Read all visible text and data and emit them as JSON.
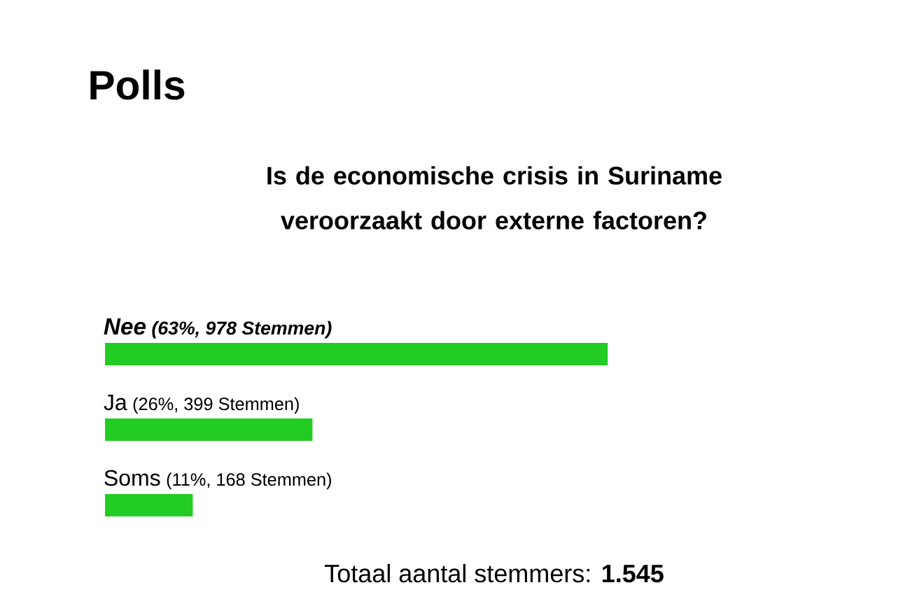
{
  "chart_data": {
    "type": "bar",
    "orientation": "horizontal",
    "title": "Polls",
    "subtitle": "Is de economische crisis in Suriname veroorzaakt door externe factoren?",
    "categories": [
      "Nee",
      "Ja",
      "Soms"
    ],
    "values": [
      63,
      26,
      11
    ],
    "value_labels": [
      "(63%, 978 Stemmen)",
      "(26%, 399 Stemmen)",
      "(11%, 168 Stemmen)"
    ],
    "color": "#22cc22",
    "annotations": [
      "Totaal aantal stemmers: **1.545**"
    ]
  }
}
